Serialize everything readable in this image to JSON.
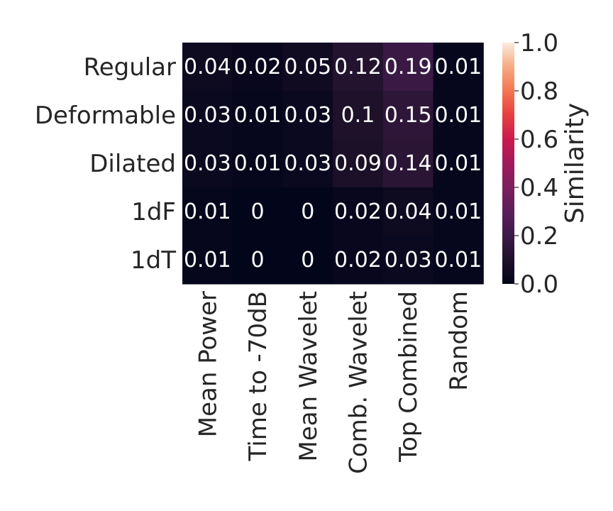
{
  "chart_data": {
    "type": "heatmap",
    "rows": [
      "Regular",
      "Deformable",
      "Dilated",
      "1dF",
      "1dT"
    ],
    "columns": [
      "Mean Power",
      "Time to -70dB",
      "Mean Wavelet",
      "Comb. Wavelet",
      "Top Combined",
      "Random"
    ],
    "values": [
      [
        0.04,
        0.02,
        0.05,
        0.12,
        0.19,
        0.01
      ],
      [
        0.03,
        0.01,
        0.03,
        0.1,
        0.15,
        0.01
      ],
      [
        0.03,
        0.01,
        0.03,
        0.09,
        0.14,
        0.01
      ],
      [
        0.01,
        0,
        0,
        0.02,
        0.04,
        0.01
      ],
      [
        0.01,
        0,
        0,
        0.02,
        0.03,
        0.01
      ]
    ],
    "colorbar": {
      "label": "Similarity",
      "range": [
        0.0,
        1.0
      ],
      "ticks": [
        "0.0",
        "0.2",
        "0.4",
        "0.6",
        "0.8",
        "1.0"
      ],
      "colormap": "rocket"
    }
  }
}
